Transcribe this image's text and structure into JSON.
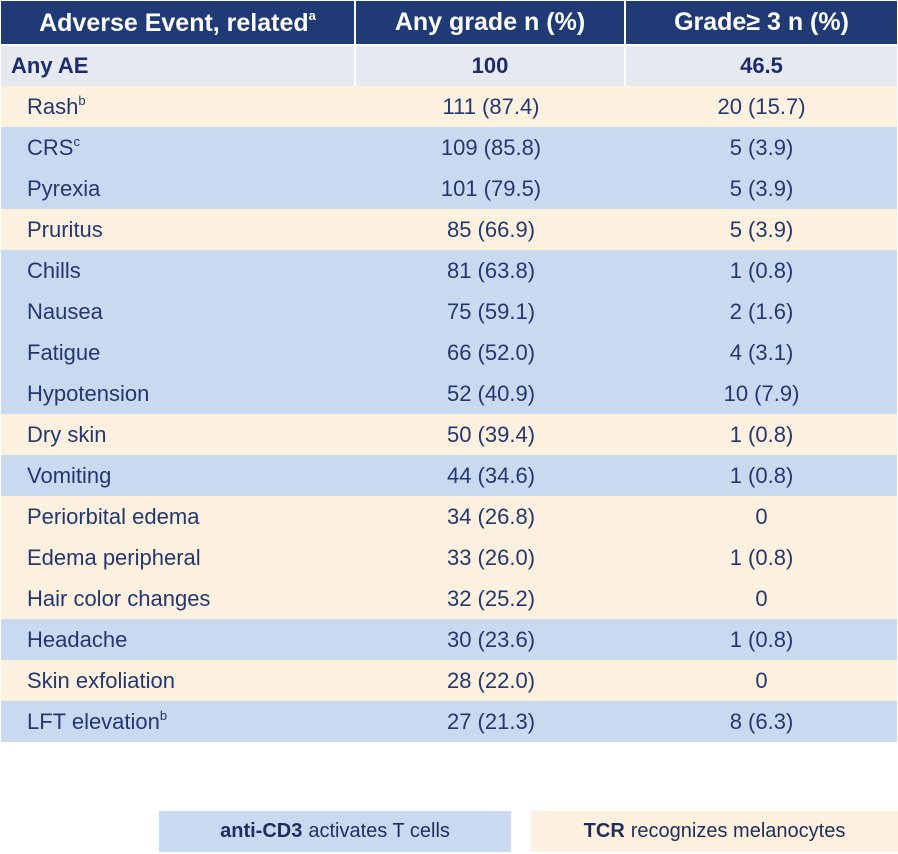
{
  "table": {
    "headers": {
      "event": "Adverse Event, related",
      "event_sup": "a",
      "any_grade": "Any grade n (%)",
      "grade3": "Grade≥ 3 n (%)"
    },
    "summary": {
      "label": "Any AE",
      "any_grade": "100",
      "grade3": "46.5"
    },
    "rows": [
      {
        "event": "Rash",
        "sup": "b",
        "any_grade": "111 (87.4)",
        "grade3": "20 (15.7)",
        "category": "skin"
      },
      {
        "event": "CRS",
        "sup": "c",
        "any_grade": "109 (85.8)",
        "grade3": "5 (3.9)",
        "category": "tcell"
      },
      {
        "event": "Pyrexia",
        "sup": "",
        "any_grade": "101 (79.5)",
        "grade3": "5 (3.9)",
        "category": "tcell"
      },
      {
        "event": "Pruritus",
        "sup": "",
        "any_grade": "85 (66.9)",
        "grade3": "5 (3.9)",
        "category": "skin"
      },
      {
        "event": "Chills",
        "sup": "",
        "any_grade": "81 (63.8)",
        "grade3": "1 (0.8)",
        "category": "tcell"
      },
      {
        "event": "Nausea",
        "sup": "",
        "any_grade": "75 (59.1)",
        "grade3": "2 (1.6)",
        "category": "tcell"
      },
      {
        "event": "Fatigue",
        "sup": "",
        "any_grade": "66 (52.0)",
        "grade3": "4 (3.1)",
        "category": "tcell"
      },
      {
        "event": "Hypotension",
        "sup": "",
        "any_grade": "52 (40.9)",
        "grade3": "10 (7.9)",
        "category": "tcell"
      },
      {
        "event": "Dry skin",
        "sup": "",
        "any_grade": "50 (39.4)",
        "grade3": "1 (0.8)",
        "category": "skin"
      },
      {
        "event": "Vomiting",
        "sup": "",
        "any_grade": "44 (34.6)",
        "grade3": "1 (0.8)",
        "category": "tcell"
      },
      {
        "event": "Periorbital edema",
        "sup": "",
        "any_grade": "34 (26.8)",
        "grade3": "0",
        "category": "skin"
      },
      {
        "event": "Edema peripheral",
        "sup": "",
        "any_grade": "33 (26.0)",
        "grade3": "1 (0.8)",
        "category": "skin"
      },
      {
        "event": "Hair color changes",
        "sup": "",
        "any_grade": "32 (25.2)",
        "grade3": "0",
        "category": "skin"
      },
      {
        "event": "Headache",
        "sup": "",
        "any_grade": "30 (23.6)",
        "grade3": "1 (0.8)",
        "category": "tcell"
      },
      {
        "event": "Skin exfoliation",
        "sup": "",
        "any_grade": "28 (22.0)",
        "grade3": "0",
        "category": "skin"
      },
      {
        "event": "LFT elevation",
        "sup": "b",
        "any_grade": "27 (21.3)",
        "grade3": "8 (6.3)",
        "category": "tcell"
      }
    ]
  },
  "legend": {
    "tcell": {
      "bold": "anti-CD3",
      "text": "activates T cells"
    },
    "skin": {
      "bold": "TCR",
      "text": "recognizes melanocytes"
    }
  },
  "colors": {
    "header_bg": "#1f3a75",
    "summary_bg": "#e6e9ef",
    "tcell_bg": "#c9daf0",
    "skin_bg": "#fbf1de",
    "text": "#243770"
  }
}
